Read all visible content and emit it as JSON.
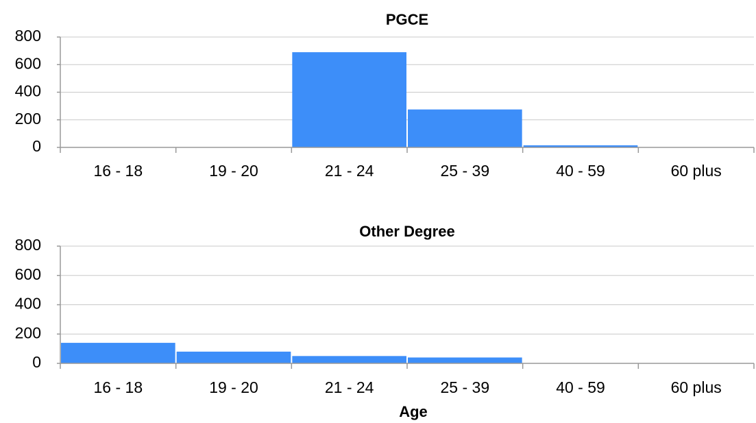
{
  "chart_data": [
    {
      "type": "bar",
      "title": "PGCE",
      "categories": [
        "16 - 18",
        "19 - 20",
        "21 - 24",
        "25 - 39",
        "40 - 59",
        "60 plus"
      ],
      "values": [
        0,
        0,
        690,
        275,
        15,
        2
      ],
      "color": "#3d8ef9",
      "ylim": [
        0,
        800
      ],
      "yticks": [
        0,
        200,
        400,
        600,
        800
      ],
      "grid": true
    },
    {
      "type": "bar",
      "title": "Other Degree",
      "x_label": "Age",
      "categories": [
        "16 - 18",
        "19 - 20",
        "21 - 24",
        "25 - 39",
        "40 - 59",
        "60 plus"
      ],
      "values": [
        140,
        80,
        50,
        40,
        2,
        1
      ],
      "color": "#3d8ef9",
      "ylim": [
        0,
        800
      ],
      "yticks": [
        0,
        200,
        400,
        600,
        800
      ],
      "grid": true
    }
  ]
}
